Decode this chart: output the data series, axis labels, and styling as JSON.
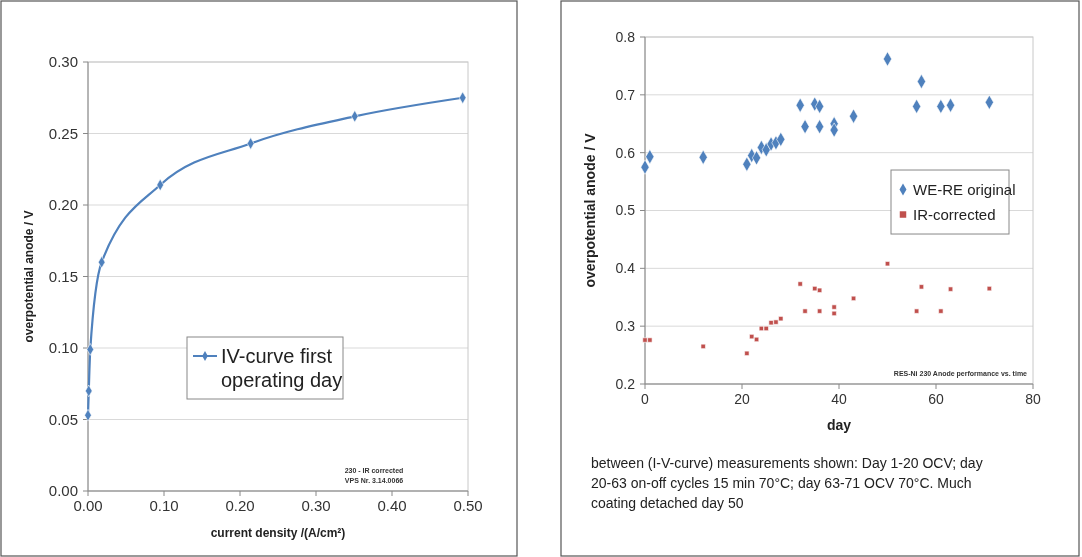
{
  "chart_data": [
    {
      "type": "line",
      "xlabel": "current density /(A/cm²)",
      "ylabel": "overpotential anode / V",
      "xlim": [
        0,
        0.5
      ],
      "xticks": [
        {
          "value": 0,
          "label": "0.00"
        },
        {
          "value": 0.1,
          "label": "0.10"
        },
        {
          "value": 0.2,
          "label": "0.20"
        },
        {
          "value": 0.3,
          "label": "0.30"
        },
        {
          "value": 0.4,
          "label": "0.40"
        },
        {
          "value": 0.5,
          "label": "0.50"
        }
      ],
      "ylim": [
        0,
        0.3
      ],
      "yticks": [
        {
          "value": 0,
          "label": "0.00"
        },
        {
          "value": 0.05,
          "label": "0.05"
        },
        {
          "value": 0.1,
          "label": "0.10"
        },
        {
          "value": 0.15,
          "label": "0.15"
        },
        {
          "value": 0.2,
          "label": "0.20"
        },
        {
          "value": 0.25,
          "label": "0.25"
        },
        {
          "value": 0.3,
          "label": "0.30"
        }
      ],
      "grid": "y",
      "legend": "bottom",
      "marker": "diamond",
      "annotations": [
        "230 - IR corrected\nVPS Nr. 3.14.0066"
      ],
      "series": [
        {
          "name": "IV-curve first operating day",
          "color": "#4f81bd",
          "x": [
            0,
            0.001,
            0.003,
            0.018,
            0.095,
            0.214,
            0.351,
            0.493
          ],
          "values": [
            0.053,
            0.07,
            0.099,
            0.16,
            0.214,
            0.243,
            0.262,
            0.275
          ]
        }
      ]
    },
    {
      "type": "scatter",
      "xlabel": "day",
      "ylabel": "overpotential anode / V",
      "xlim": [
        0,
        80
      ],
      "xticks": [
        0,
        20,
        40,
        60,
        80
      ],
      "ylim": [
        0.2,
        0.8
      ],
      "yticks": [
        0.2,
        0.3,
        0.4,
        0.5,
        0.6,
        0.7,
        0.8
      ],
      "grid": "y",
      "legend": "right",
      "annotations": [
        "RES-Ni 230 Anode performance vs. time",
        "between (I-V-curve) measurements shown: Day 1-20 OCV; day 20-63 on-off cycles 15 min 70°C; day 63-71 OCV 70°C. Much coating detached day 50"
      ],
      "series": [
        {
          "name": "WE-RE original",
          "color": "#4f81bd",
          "marker": "diamond",
          "x": [
            0,
            1,
            12,
            21,
            22,
            23,
            24,
            25,
            26,
            27,
            28,
            32,
            33,
            35,
            36,
            36,
            39,
            39,
            43,
            50,
            56,
            57,
            61,
            63,
            71
          ],
          "values": [
            0.575,
            0.593,
            0.592,
            0.58,
            0.595,
            0.591,
            0.609,
            0.605,
            0.615,
            0.617,
            0.623,
            0.682,
            0.645,
            0.684,
            0.68,
            0.645,
            0.65,
            0.639,
            0.663,
            0.762,
            0.68,
            0.723,
            0.68,
            0.682,
            0.687
          ]
        },
        {
          "name": "IR-corrected",
          "color": "#c0504d",
          "marker": "square",
          "x": [
            0,
            1,
            12,
            21,
            22,
            23,
            24,
            25,
            26,
            27,
            28,
            32,
            33,
            35,
            36,
            36,
            39,
            39,
            43,
            50,
            56,
            57,
            61,
            63,
            71
          ],
          "values": [
            0.276,
            0.276,
            0.265,
            0.253,
            0.282,
            0.277,
            0.296,
            0.296,
            0.306,
            0.307,
            0.313,
            0.373,
            0.326,
            0.365,
            0.362,
            0.326,
            0.333,
            0.322,
            0.348,
            0.408,
            0.326,
            0.368,
            0.326,
            0.364,
            0.365
          ]
        }
      ]
    }
  ]
}
